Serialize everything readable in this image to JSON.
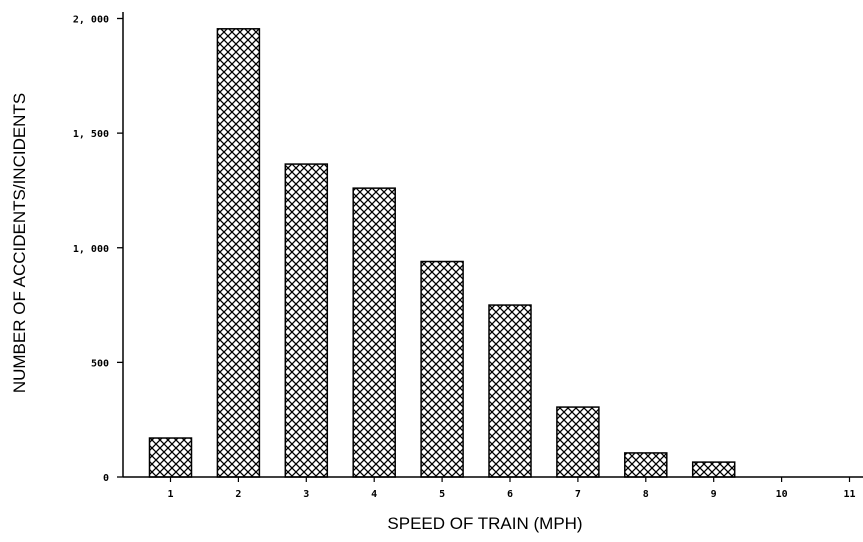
{
  "chart_data": {
    "type": "bar",
    "title": "",
    "xlabel": "SPEED OF TRAIN (MPH)",
    "ylabel": "NUMBER OF ACCIDENTS/INCIDENTS",
    "categories": [
      "1",
      "2",
      "3",
      "4",
      "5",
      "6",
      "7",
      "8",
      "9",
      "10",
      "11"
    ],
    "values": [
      170,
      1955,
      1365,
      1260,
      940,
      750,
      305,
      105,
      65,
      0,
      0
    ],
    "ylim": [
      0,
      2000
    ],
    "yticks": [
      {
        "value": 0,
        "label": "0"
      },
      {
        "value": 500,
        "label": "500"
      },
      {
        "value": 1000,
        "label": "1, 000"
      },
      {
        "value": 1500,
        "label": "1, 500"
      },
      {
        "value": 2000,
        "label": "2, 000"
      }
    ],
    "grid": false,
    "bar_fill": "crosshatch",
    "colors": {
      "bar_stroke": "#000000",
      "hatch": "#000000",
      "background": "#ffffff"
    }
  }
}
